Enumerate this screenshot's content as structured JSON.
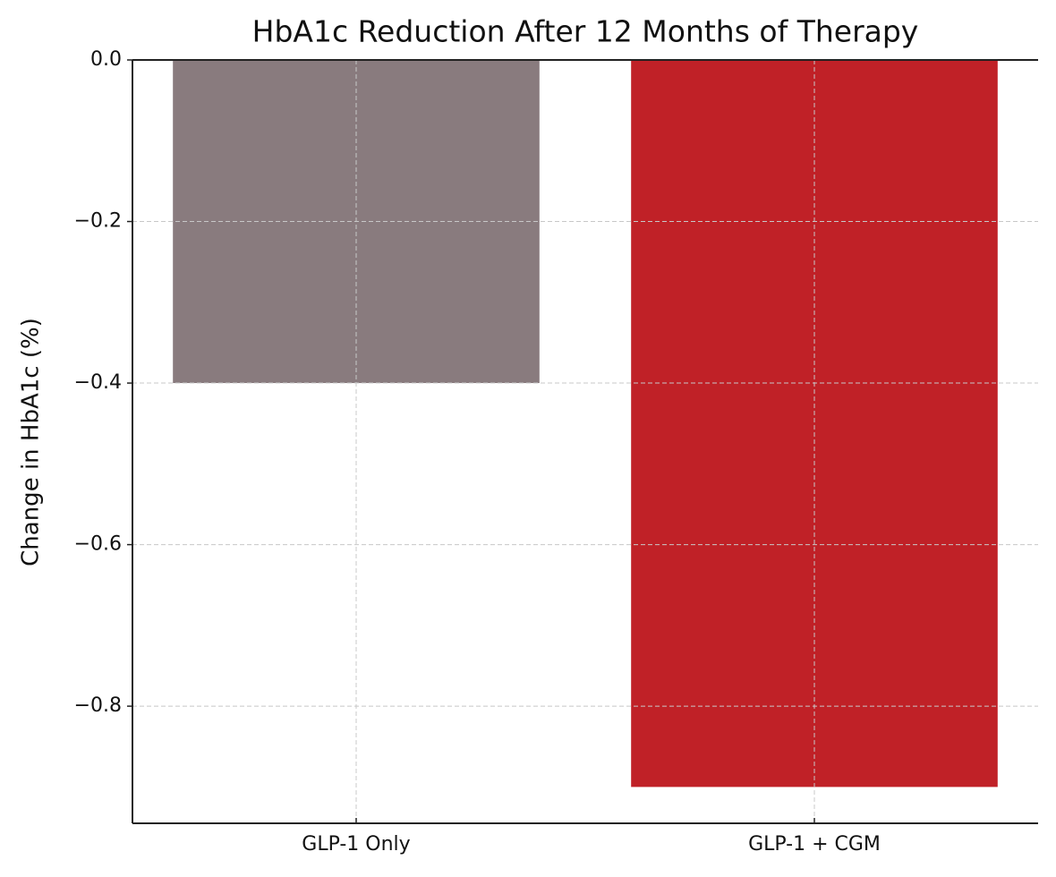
{
  "chart_data": {
    "type": "bar",
    "title": "HbA1c Reduction After 12 Months of Therapy",
    "y_label": "Change in HbA1c (%)",
    "categories": [
      "GLP-1 Only",
      "GLP-1 + CGM"
    ],
    "values": [
      -0.4,
      -0.9
    ],
    "colors": [
      "#897b7e",
      "#c02127"
    ],
    "ylim": [
      -0.945,
      0
    ],
    "yticks": [
      {
        "value": 0,
        "label": "0.0"
      },
      {
        "value": -0.2,
        "label": "−0.2"
      },
      {
        "value": -0.4,
        "label": "−0.4"
      },
      {
        "value": -0.6,
        "label": "−0.6"
      },
      {
        "value": -0.8,
        "label": "−0.8"
      }
    ],
    "grid": true
  }
}
